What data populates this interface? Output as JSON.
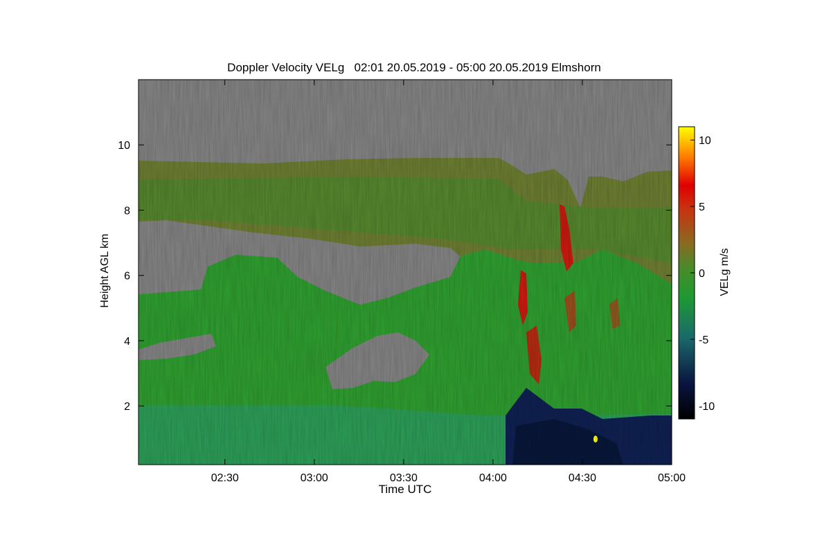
{
  "chart_data": {
    "type": "heatmap",
    "title": "Doppler Velocity VELg   02:01 20.05.2019 - 05:00 20.05.2019 Elmshorn",
    "xlabel": "Time UTC",
    "ylabel": "Height AGL km",
    "x_ticks": [
      "02:30",
      "03:00",
      "03:30",
      "04:00",
      "04:30",
      "05:00"
    ],
    "x_tick_values_min": [
      150,
      180,
      210,
      240,
      270,
      300
    ],
    "xlim_min": [
      121,
      300
    ],
    "y_ticks": [
      "2",
      "4",
      "6",
      "8",
      "10"
    ],
    "y_tick_values": [
      2,
      4,
      6,
      8,
      10
    ],
    "ylim": [
      0.2,
      12.0
    ],
    "colorbar": {
      "label": "VELg m/s",
      "ticks": [
        "10",
        "5",
        "0",
        "-5",
        "-10"
      ],
      "tick_values": [
        10,
        5,
        0,
        -5,
        -10
      ],
      "range": [
        -11,
        11
      ]
    },
    "grid": false,
    "colors": {
      "no_data": "#808080",
      "dominant": "#2e9a2e",
      "negative_low": "#0a1a3a",
      "positive_high": "#d01010",
      "max": "#ffff00"
    }
  }
}
